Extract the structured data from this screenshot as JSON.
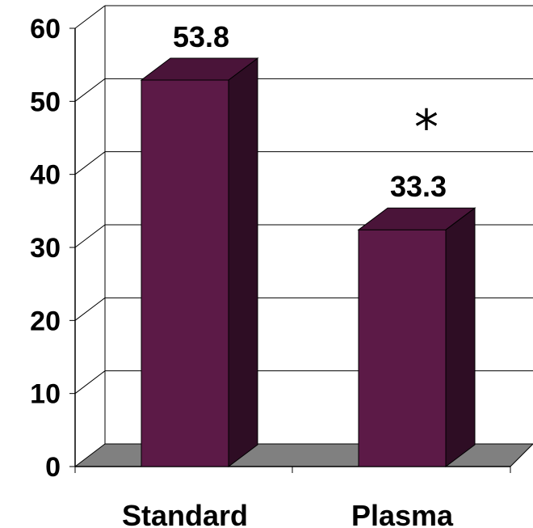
{
  "chart_data": {
    "type": "bar",
    "style": "3d-column",
    "categories": [
      "Standard",
      "Plasma"
    ],
    "values": [
      53.8,
      33.3
    ],
    "data_labels": [
      "53.8",
      "33.3"
    ],
    "annotations": [
      {
        "category": "Plasma",
        "text": "*"
      }
    ],
    "yticks": [
      0,
      10,
      20,
      30,
      40,
      50,
      60
    ],
    "ytick_labels": [
      "0",
      "10",
      "20",
      "30",
      "40",
      "50",
      "60"
    ],
    "ylim": [
      0,
      60
    ],
    "grid": true,
    "legend": "none",
    "colors": {
      "bar_front": "#5c1a47",
      "bar_top": "#4a1439",
      "bar_side": "#2e0d24",
      "floor": "#808080"
    }
  }
}
